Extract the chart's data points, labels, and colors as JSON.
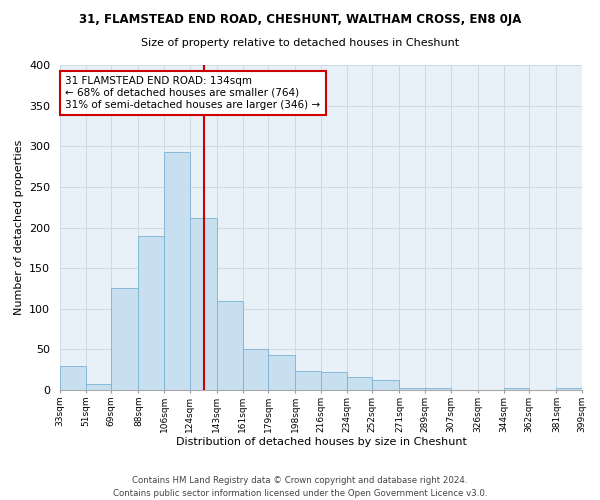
{
  "title": "31, FLAMSTEAD END ROAD, CHESHUNT, WALTHAM CROSS, EN8 0JA",
  "subtitle": "Size of property relative to detached houses in Cheshunt",
  "xlabel": "Distribution of detached houses by size in Cheshunt",
  "ylabel": "Number of detached properties",
  "bar_color": "#c8dff0",
  "bar_edge_color": "#7ab3d3",
  "background_color": "#ffffff",
  "grid_color": "#d0d8e4",
  "vline_x": 134,
  "vline_color": "#cc0000",
  "annotation_text": "31 FLAMSTEAD END ROAD: 134sqm\n← 68% of detached houses are smaller (764)\n31% of semi-detached houses are larger (346) →",
  "annotation_box_color": "#ffffff",
  "annotation_box_edge": "#cc0000",
  "footer1": "Contains HM Land Registry data © Crown copyright and database right 2024.",
  "footer2": "Contains public sector information licensed under the Open Government Licence v3.0.",
  "ylim": [
    0,
    400
  ],
  "bin_edges": [
    33,
    51,
    69,
    88,
    106,
    124,
    143,
    161,
    179,
    198,
    216,
    234,
    252,
    271,
    289,
    307,
    326,
    344,
    362,
    381,
    399
  ],
  "bin_heights": [
    30,
    8,
    125,
    190,
    293,
    212,
    110,
    50,
    43,
    23,
    22,
    16,
    12,
    3,
    2,
    0,
    0,
    3,
    0,
    3
  ],
  "tick_labels": [
    "33sqm",
    "51sqm",
    "69sqm",
    "88sqm",
    "106sqm",
    "124sqm",
    "143sqm",
    "161sqm",
    "179sqm",
    "198sqm",
    "216sqm",
    "234sqm",
    "252sqm",
    "271sqm",
    "289sqm",
    "307sqm",
    "326sqm",
    "344sqm",
    "362sqm",
    "381sqm",
    "399sqm"
  ]
}
